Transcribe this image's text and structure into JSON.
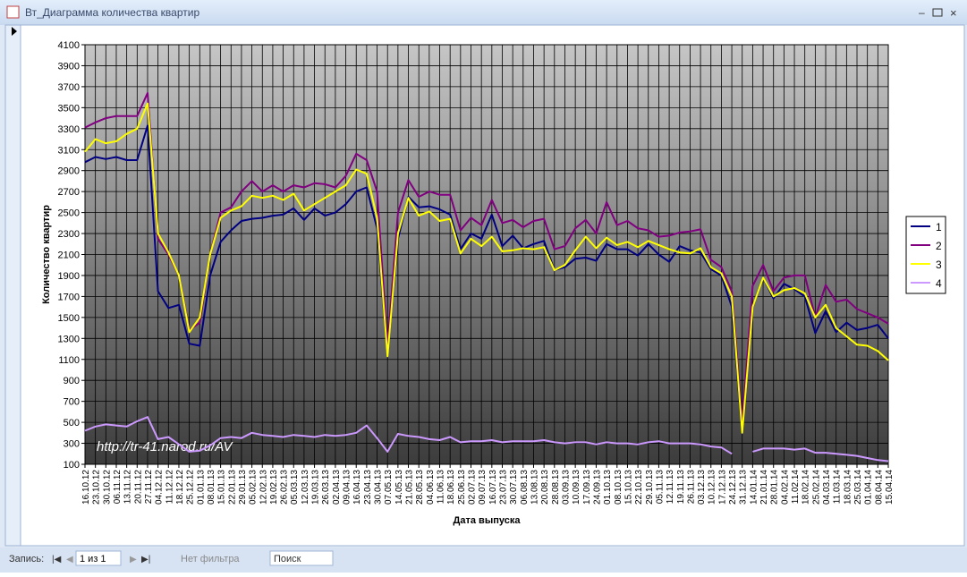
{
  "window": {
    "title": "Вт_Диаграмма количества квартир",
    "status_bar": {
      "record_label": "Запись:",
      "record_position": "1 из 1",
      "filter": "Нет фильтра",
      "search": "Поиск"
    }
  },
  "chart_data": {
    "type": "line",
    "y_label": "Количество квартир",
    "x_label": "Дата выпуска",
    "annotation": "http://tr-41.narod.ru/AV",
    "categories": [
      "16.10.12",
      "23.10.12",
      "30.10.12",
      "06.11.12",
      "13.11.12",
      "20.11.12",
      "27.11.12",
      "04.12.12",
      "11.12.12",
      "18.12.12",
      "25.12.12",
      "01.01.13",
      "08.01.13",
      "15.01.13",
      "22.01.13",
      "29.01.13",
      "05.02.13",
      "12.02.13",
      "19.02.13",
      "26.02.13",
      "05.03.13",
      "12.03.13",
      "19.03.13",
      "26.03.13",
      "02.04.13",
      "09.04.13",
      "16.04.13",
      "23.04.13",
      "30.04.13",
      "07.05.13",
      "14.05.13",
      "21.05.13",
      "28.05.13",
      "04.06.13",
      "11.06.13",
      "18.06.13",
      "25.06.13",
      "02.07.13",
      "09.07.13",
      "16.07.13",
      "23.07.13",
      "30.07.13",
      "06.08.13",
      "13.08.13",
      "20.08.13",
      "28.08.13",
      "03.09.13",
      "10.09.13",
      "17.09.13",
      "24.09.13",
      "01.10.13",
      "08.10.13",
      "15.10.13",
      "22.10.13",
      "29.10.13",
      "05.11.13",
      "12.11.13",
      "19.11.13",
      "26.11.13",
      "03.12.13",
      "10.12.13",
      "17.12.13",
      "24.12.13",
      "31.12.13",
      "14.01.14",
      "21.01.14",
      "28.01.14",
      "04.02.14",
      "11.02.14",
      "18.02.14",
      "25.02.14",
      "04.03.14",
      "11.03.14",
      "18.03.14",
      "25.03.14",
      "01.04.14",
      "08.04.14",
      "15.04.14"
    ],
    "series": [
      {
        "name": "1",
        "color": "#000080",
        "values": [
          2980,
          3030,
          3010,
          3030,
          3000,
          3000,
          3330,
          1750,
          1590,
          1620,
          1250,
          1230,
          1900,
          2220,
          2330,
          2420,
          2440,
          2450,
          2470,
          2480,
          2540,
          2430,
          2540,
          2470,
          2500,
          2580,
          2700,
          2740,
          2350,
          1150,
          2250,
          2650,
          2550,
          2560,
          2530,
          2480,
          2150,
          2300,
          2250,
          2480,
          2180,
          2280,
          2160,
          2200,
          2230,
          1950,
          1980,
          2060,
          2070,
          2040,
          2200,
          2150,
          2150,
          2090,
          2200,
          2100,
          2030,
          2180,
          2140,
          2120,
          1960,
          1900,
          1600,
          400,
          1600,
          1880,
          1680,
          1820,
          1770,
          1700,
          1350,
          1560,
          1360,
          1450,
          1380,
          1400,
          1430,
          1300
        ]
      },
      {
        "name": "2",
        "color": "#800080",
        "values": [
          3310,
          3360,
          3400,
          3420,
          3420,
          3420,
          3640,
          2250,
          2100,
          1900,
          1380,
          1450,
          2100,
          2500,
          2550,
          2700,
          2800,
          2700,
          2760,
          2700,
          2760,
          2740,
          2780,
          2770,
          2740,
          2850,
          3060,
          3000,
          2700,
          1230,
          2500,
          2810,
          2650,
          2700,
          2670,
          2670,
          2330,
          2450,
          2380,
          2620,
          2400,
          2430,
          2360,
          2420,
          2440,
          2150,
          2180,
          2350,
          2430,
          2300,
          2600,
          2380,
          2420,
          2350,
          2330,
          2270,
          2280,
          2310,
          2320,
          2340,
          2050,
          1980,
          1750,
          500,
          1800,
          2000,
          1750,
          1880,
          1900,
          1900,
          1500,
          1810,
          1650,
          1670,
          1580,
          1540,
          1500,
          1440
        ]
      },
      {
        "name": "3",
        "color": "#ffff00",
        "values": [
          3080,
          3200,
          3160,
          3180,
          3250,
          3300,
          3540,
          2300,
          2120,
          1900,
          1360,
          1500,
          2100,
          2450,
          2520,
          2560,
          2660,
          2640,
          2660,
          2620,
          2680,
          2520,
          2580,
          2640,
          2700,
          2760,
          2910,
          2870,
          2450,
          1130,
          2300,
          2640,
          2470,
          2510,
          2420,
          2440,
          2110,
          2250,
          2180,
          2270,
          2130,
          2140,
          2160,
          2150,
          2170,
          1950,
          2000,
          2140,
          2270,
          2160,
          2260,
          2190,
          2220,
          2170,
          2230,
          2190,
          2150,
          2120,
          2110,
          2160,
          1980,
          1920,
          1700,
          400,
          1600,
          1880,
          1700,
          1760,
          1780,
          1730,
          1500,
          1620,
          1400,
          1320,
          1240,
          1230,
          1180,
          1090
        ]
      },
      {
        "name": "4",
        "color": "#cc99ff",
        "values": [
          420,
          460,
          480,
          470,
          460,
          510,
          550,
          340,
          360,
          290,
          220,
          230,
          280,
          350,
          360,
          350,
          400,
          380,
          370,
          360,
          380,
          370,
          360,
          380,
          370,
          380,
          400,
          470,
          350,
          220,
          390,
          370,
          360,
          340,
          330,
          360,
          310,
          320,
          320,
          330,
          310,
          320,
          320,
          320,
          330,
          310,
          300,
          310,
          310,
          290,
          310,
          300,
          300,
          290,
          310,
          320,
          300,
          300,
          300,
          290,
          270,
          260,
          200,
          null,
          220,
          250,
          250,
          250,
          240,
          250,
          210,
          210,
          200,
          190,
          180,
          160,
          140,
          130
        ]
      }
    ],
    "ylim": [
      100,
      4100
    ],
    "yticks": [
      100,
      300,
      500,
      700,
      900,
      1100,
      1300,
      1500,
      1700,
      1900,
      2100,
      2300,
      2500,
      2700,
      2900,
      3100,
      3300,
      3500,
      3700,
      3900,
      4100
    ],
    "grid": true,
    "legend": "right"
  }
}
